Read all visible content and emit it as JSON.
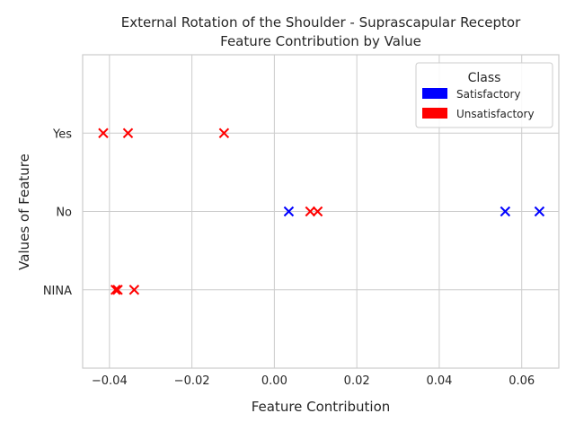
{
  "chart_data": {
    "type": "scatter",
    "title": "External Rotation of the Shoulder - Suprascapular Receptor",
    "subtitle": "Feature Contribution by Value",
    "xlabel": "Feature Contribution",
    "ylabel": "Values of Feature",
    "xlim": [
      -0.0465,
      0.069
    ],
    "x_ticks": [
      -0.04,
      -0.02,
      0.0,
      0.02,
      0.04,
      0.06
    ],
    "x_tick_labels": [
      "−0.04",
      "−0.02",
      "0.00",
      "0.02",
      "0.04",
      "0.06"
    ],
    "categories": [
      "Yes",
      "No",
      "NINA"
    ],
    "grid": true,
    "marker": "x",
    "legend": {
      "title": "Class",
      "placement": "top-right",
      "entries": [
        {
          "label": "Satisfactory",
          "color": "#0000ff"
        },
        {
          "label": "Unsatisfactory",
          "color": "#ff0000"
        }
      ]
    },
    "series": [
      {
        "name": "Satisfactory",
        "color": "#0000ff",
        "points": [
          {
            "x": 0.0035,
            "y": "No"
          },
          {
            "x": 0.056,
            "y": "No"
          },
          {
            "x": 0.0643,
            "y": "No"
          }
        ]
      },
      {
        "name": "Unsatisfactory",
        "color": "#ff0000",
        "points": [
          {
            "x": -0.0415,
            "y": "Yes"
          },
          {
            "x": -0.0355,
            "y": "Yes"
          },
          {
            "x": -0.0122,
            "y": "Yes"
          },
          {
            "x": 0.0087,
            "y": "No"
          },
          {
            "x": 0.0105,
            "y": "No"
          },
          {
            "x": -0.0385,
            "y": "NINA"
          },
          {
            "x": -0.038,
            "y": "NINA"
          },
          {
            "x": -0.034,
            "y": "NINA"
          }
        ]
      }
    ]
  }
}
